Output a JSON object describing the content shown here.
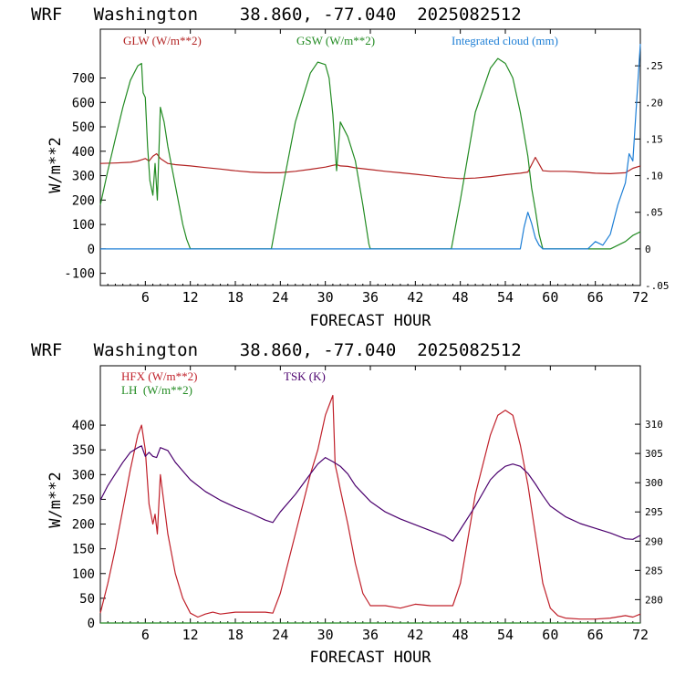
{
  "chart_data": [
    {
      "type": "line",
      "title": "WRF   Washington    38.860, -77.040  2025082512",
      "xlabel": "FORECAST HOUR",
      "ylabel": "W/m**2",
      "xlim": [
        0,
        72
      ],
      "ylim": [
        -150,
        900
      ],
      "y2lim": [
        -0.05,
        0.3
      ],
      "grid": false,
      "legend_placement": "top",
      "xticks": [
        "6",
        "12",
        "18",
        "24",
        "30",
        "36",
        "42",
        "48",
        "54",
        "60",
        "66",
        "72"
      ],
      "yticks": [
        "-100",
        "0",
        "100",
        "200",
        "300",
        "400",
        "500",
        "600",
        "700"
      ],
      "y2ticks": [
        "-.05",
        "0",
        ".05",
        ".10",
        ".15",
        ".20",
        ".25"
      ],
      "series": [
        {
          "name": "GLW (W/m**2)",
          "color": "#b22222",
          "axis": "left",
          "x": [
            0,
            2,
            4,
            5,
            5.5,
            6,
            6.5,
            7,
            7.5,
            8,
            8.5,
            9,
            10,
            12,
            14,
            16,
            18,
            20,
            22,
            24,
            26,
            28,
            30,
            31,
            31.5,
            32,
            33,
            34,
            36,
            38,
            40,
            42,
            44,
            46,
            48,
            50,
            52,
            54,
            56,
            57,
            58,
            59,
            60,
            62,
            64,
            66,
            68,
            70,
            71,
            72
          ],
          "y": [
            350,
            352,
            355,
            360,
            365,
            370,
            360,
            380,
            390,
            370,
            360,
            350,
            345,
            340,
            333,
            327,
            320,
            315,
            312,
            312,
            318,
            326,
            335,
            342,
            345,
            340,
            338,
            332,
            325,
            318,
            312,
            306,
            299,
            292,
            288,
            290,
            296,
            304,
            310,
            315,
            375,
            320,
            318,
            318,
            315,
            310,
            308,
            312,
            330,
            340
          ]
        },
        {
          "name": "GSW (W/m**2)",
          "color": "#228b22",
          "axis": "left",
          "x": [
            0,
            1,
            2,
            3,
            4,
            5,
            5.5,
            5.7,
            6,
            6.3,
            6.6,
            7,
            7.3,
            7.6,
            8,
            8.5,
            9,
            10,
            11,
            11.5,
            12,
            22.8,
            24,
            26,
            28,
            29,
            30,
            30.5,
            31,
            31.5,
            32,
            33,
            34,
            35,
            35.8,
            36,
            46.8,
            48,
            50,
            52,
            53,
            54,
            55,
            56,
            57,
            57.5,
            58,
            58.5,
            59,
            60,
            66,
            68,
            70,
            71,
            72
          ],
          "y": [
            180,
            320,
            450,
            580,
            690,
            750,
            760,
            640,
            620,
            420,
            280,
            220,
            350,
            200,
            580,
            520,
            420,
            260,
            100,
            40,
            0,
            0,
            200,
            520,
            720,
            765,
            755,
            700,
            550,
            320,
            520,
            460,
            360,
            180,
            20,
            0,
            0,
            200,
            560,
            740,
            780,
            760,
            700,
            560,
            380,
            250,
            160,
            60,
            0,
            0,
            0,
            0,
            30,
            55,
            70
          ]
        },
        {
          "name": "Integrated cloud (mm)",
          "color": "#1e7fd6",
          "axis": "right",
          "x": [
            0,
            56,
            56.5,
            57,
            57.5,
            58,
            58.5,
            59,
            60,
            65,
            66,
            67,
            68,
            69,
            70,
            70.5,
            71,
            71.5,
            72
          ],
          "y": [
            0,
            0,
            0.03,
            0.05,
            0.035,
            0.015,
            0.005,
            0,
            0,
            0,
            0.01,
            0.005,
            0.02,
            0.06,
            0.09,
            0.13,
            0.12,
            0.2,
            0.28
          ]
        }
      ]
    },
    {
      "type": "line",
      "title": "WRF   Washington    38.860, -77.040  2025082512",
      "xlabel": "FORECAST HOUR",
      "ylabel": "W/m**2",
      "xlim": [
        0,
        72
      ],
      "ylim": [
        0,
        520
      ],
      "y2lim": [
        276,
        320
      ],
      "grid": false,
      "legend_placement": "top-left",
      "xticks": [
        "6",
        "12",
        "18",
        "24",
        "30",
        "36",
        "42",
        "48",
        "54",
        "60",
        "66",
        "72"
      ],
      "yticks": [
        "0",
        "50",
        "100",
        "150",
        "200",
        "250",
        "300",
        "350",
        "400"
      ],
      "y2ticks": [
        "280",
        "285",
        "290",
        "295",
        "300",
        "305",
        "310"
      ],
      "series": [
        {
          "name": "HFX (W/m**2)",
          "color": "#c0202a",
          "axis": "left",
          "x": [
            0,
            1,
            2,
            3,
            4,
            5,
            5.5,
            6,
            6.5,
            7,
            7.3,
            7.6,
            8,
            8.5,
            9,
            10,
            11,
            12,
            13,
            14,
            15,
            16,
            18,
            20,
            22,
            23,
            24,
            26,
            28,
            29,
            30,
            30.5,
            31,
            31.3,
            31.6,
            32,
            33,
            34,
            35,
            36,
            38,
            40,
            42,
            44,
            46,
            47,
            48,
            50,
            52,
            53,
            54,
            55,
            56,
            57,
            58,
            59,
            60,
            61,
            62,
            64,
            66,
            68,
            70,
            71,
            72
          ],
          "y": [
            20,
            80,
            150,
            230,
            310,
            380,
            400,
            350,
            240,
            200,
            220,
            180,
            300,
            240,
            180,
            100,
            50,
            20,
            12,
            18,
            22,
            18,
            22,
            22,
            22,
            20,
            60,
            180,
            300,
            350,
            420,
            440,
            460,
            320,
            300,
            270,
            200,
            120,
            60,
            35,
            35,
            30,
            38,
            35,
            35,
            35,
            80,
            260,
            380,
            420,
            430,
            420,
            360,
            280,
            180,
            80,
            30,
            15,
            10,
            8,
            8,
            10,
            15,
            12,
            18
          ]
        },
        {
          "name": "LH  (W/m**2)",
          "color": "#228b22",
          "axis": "left",
          "x": [
            0,
            72
          ],
          "y": [
            0,
            0
          ]
        },
        {
          "name": "TSK (K)",
          "color": "#4b006e",
          "axis": "right",
          "x": [
            0,
            1,
            2,
            3,
            4,
            5,
            5.5,
            6,
            6.5,
            7,
            7.5,
            8,
            9,
            10,
            11,
            12,
            14,
            16,
            18,
            20,
            22,
            23,
            24,
            26,
            28,
            29,
            30,
            31,
            32,
            33,
            34,
            36,
            38,
            40,
            42,
            44,
            46,
            47,
            48,
            50,
            52,
            53,
            54,
            55,
            56,
            57,
            58,
            59,
            60,
            62,
            64,
            66,
            68,
            70,
            71,
            72
          ],
          "y": [
            297,
            299.5,
            301.5,
            303.5,
            305.2,
            306,
            306.3,
            304.5,
            305.2,
            304.5,
            304.3,
            306,
            305.5,
            303.5,
            302,
            300.5,
            298.5,
            297,
            295.8,
            294.8,
            293.6,
            293.2,
            295,
            298,
            301.5,
            303.2,
            304.3,
            303.6,
            302.8,
            301.5,
            299.5,
            296.8,
            295,
            293.8,
            292.8,
            291.8,
            290.8,
            290,
            292,
            296,
            300.5,
            301.8,
            302.8,
            303.2,
            302.8,
            301.6,
            299.8,
            297.8,
            296,
            294.2,
            293,
            292.2,
            291.4,
            290.4,
            290.3,
            291
          ]
        }
      ]
    }
  ]
}
